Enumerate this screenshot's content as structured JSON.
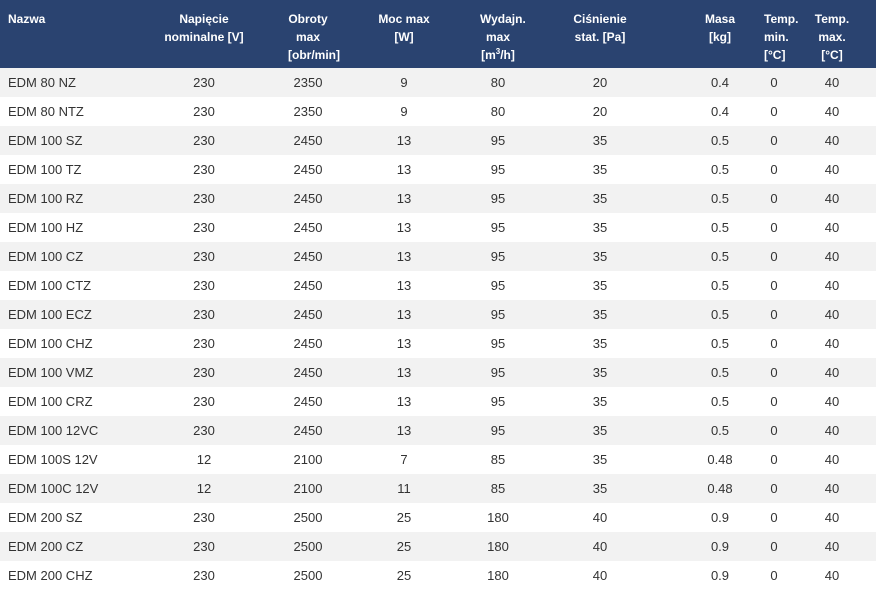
{
  "table": {
    "headers": [
      {
        "key": "name",
        "lines": [
          "Nazwa"
        ]
      },
      {
        "key": "voltage",
        "lines": [
          "Napięcie",
          "nominalne [V]"
        ]
      },
      {
        "key": "rpm",
        "lines": [
          "Obroty",
          "max [obr/min]"
        ]
      },
      {
        "key": "power",
        "lines": [
          "Moc max",
          "[W]"
        ]
      },
      {
        "key": "flow",
        "lines": [
          "Wydajn. max",
          "[m",
          "3",
          "/h]"
        ]
      },
      {
        "key": "pressure",
        "lines": [
          "Ciśnienie",
          "stat. [Pa]"
        ]
      },
      {
        "key": "mass",
        "lines": [
          "Masa",
          "[kg]"
        ]
      },
      {
        "key": "tmin",
        "lines": [
          "Temp.",
          "min.",
          "[°C]"
        ]
      },
      {
        "key": "tmax",
        "lines": [
          "Temp.",
          "max.",
          "[°C]"
        ]
      }
    ],
    "rows": [
      [
        "EDM 80 NZ",
        "230",
        "2350",
        "9",
        "80",
        "20",
        "0.4",
        "0",
        "40"
      ],
      [
        "EDM 80 NTZ",
        "230",
        "2350",
        "9",
        "80",
        "20",
        "0.4",
        "0",
        "40"
      ],
      [
        "EDM 100 SZ",
        "230",
        "2450",
        "13",
        "95",
        "35",
        "0.5",
        "0",
        "40"
      ],
      [
        "EDM 100 TZ",
        "230",
        "2450",
        "13",
        "95",
        "35",
        "0.5",
        "0",
        "40"
      ],
      [
        "EDM 100 RZ",
        "230",
        "2450",
        "13",
        "95",
        "35",
        "0.5",
        "0",
        "40"
      ],
      [
        "EDM 100 HZ",
        "230",
        "2450",
        "13",
        "95",
        "35",
        "0.5",
        "0",
        "40"
      ],
      [
        "EDM 100 CZ",
        "230",
        "2450",
        "13",
        "95",
        "35",
        "0.5",
        "0",
        "40"
      ],
      [
        "EDM 100 CTZ",
        "230",
        "2450",
        "13",
        "95",
        "35",
        "0.5",
        "0",
        "40"
      ],
      [
        "EDM 100 ECZ",
        "230",
        "2450",
        "13",
        "95",
        "35",
        "0.5",
        "0",
        "40"
      ],
      [
        "EDM 100 CHZ",
        "230",
        "2450",
        "13",
        "95",
        "35",
        "0.5",
        "0",
        "40"
      ],
      [
        "EDM 100 VMZ",
        "230",
        "2450",
        "13",
        "95",
        "35",
        "0.5",
        "0",
        "40"
      ],
      [
        "EDM 100 CRZ",
        "230",
        "2450",
        "13",
        "95",
        "35",
        "0.5",
        "0",
        "40"
      ],
      [
        "EDM 100 12VC",
        "230",
        "2450",
        "13",
        "95",
        "35",
        "0.5",
        "0",
        "40"
      ],
      [
        "EDM 100S 12V",
        "12",
        "2100",
        "7",
        "85",
        "35",
        "0.48",
        "0",
        "40"
      ],
      [
        "EDM 100C 12V",
        "12",
        "2100",
        "11",
        "85",
        "35",
        "0.48",
        "0",
        "40"
      ],
      [
        "EDM 200 SZ",
        "230",
        "2500",
        "25",
        "180",
        "40",
        "0.9",
        "0",
        "40"
      ],
      [
        "EDM 200 CZ",
        "230",
        "2500",
        "25",
        "180",
        "40",
        "0.9",
        "0",
        "40"
      ],
      [
        "EDM 200 CHZ",
        "230",
        "2500",
        "25",
        "180",
        "40",
        "0.9",
        "0",
        "40"
      ]
    ]
  },
  "colors": {
    "header_bg": "#2a4370",
    "header_text": "#ffffff",
    "row_alt": "#f2f2f2",
    "row": "#ffffff",
    "text": "#333333"
  }
}
